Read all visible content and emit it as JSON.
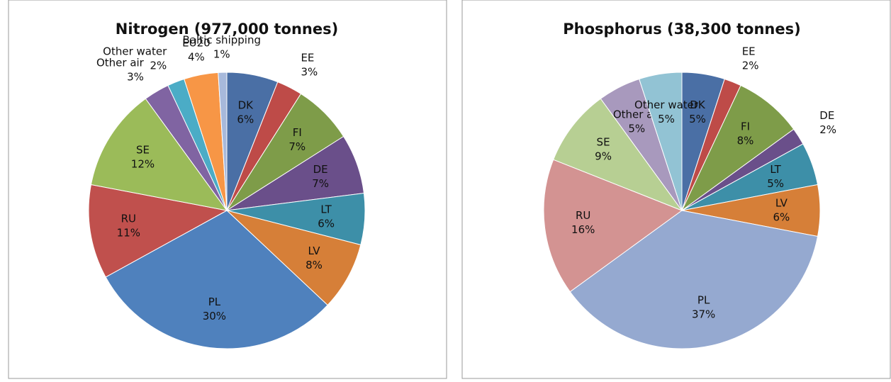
{
  "chart_data": [
    {
      "type": "pie",
      "title": "Nitrogen (977,000 tonnes)",
      "categories": [
        "DK",
        "EE",
        "FI",
        "DE",
        "LT",
        "LV",
        "PL",
        "RU",
        "SE",
        "Other air",
        "Other water",
        "EU20",
        "Baltic shipping"
      ],
      "values": [
        6,
        3,
        7,
        7,
        6,
        8,
        30,
        11,
        12,
        3,
        2,
        4,
        1
      ],
      "value_labels": [
        "6%",
        "3%",
        "7%",
        "7%",
        "6%",
        "8%",
        "30%",
        "11%",
        "12%",
        "3%",
        "2%",
        "4%",
        "1%"
      ],
      "colors": [
        "#4a6fa5",
        "#be4b48",
        "#7e9c49",
        "#6a4f8a",
        "#3d8fa8",
        "#d67f38",
        "#4f81bd",
        "#c0504d",
        "#9bbb59",
        "#8064a2",
        "#4bacc6",
        "#f79646",
        "#a7b9db"
      ]
    },
    {
      "type": "pie",
      "title": "Phosphorus (38,300 tonnes)",
      "categories": [
        "DK",
        "EE",
        "FI",
        "DE",
        "LT",
        "LV",
        "PL",
        "RU",
        "SE",
        "Other air",
        "Other water"
      ],
      "values": [
        5,
        2,
        8,
        2,
        5,
        6,
        37,
        16,
        9,
        5,
        5
      ],
      "value_labels": [
        "5%",
        "2%",
        "8%",
        "2%",
        "5%",
        "6%",
        "37%",
        "16%",
        "9%",
        "5%",
        "5%"
      ],
      "colors": [
        "#4a6fa5",
        "#be4b48",
        "#7e9c49",
        "#6a4f8a",
        "#3d8fa8",
        "#d67f38",
        "#95a9d0",
        "#d39392",
        "#b7cf93",
        "#a899bd",
        "#92c3d4"
      ]
    }
  ]
}
